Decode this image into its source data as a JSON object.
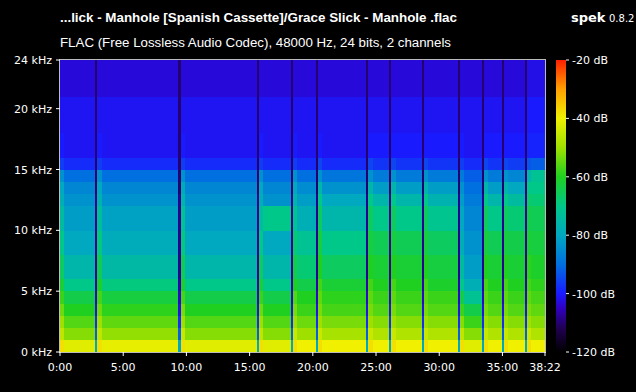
{
  "chart_data": {
    "type": "heatmap",
    "title": "...lick - Manhole [Spanish Cassette]/Grace Slick - Manhole .flac",
    "subtitle": "FLAC (Free Lossless Audio Codec), 48000 Hz, 24 bits, 2 channels",
    "app": "spek",
    "version": "0.8.2",
    "x": [
      0,
      20,
      167,
      177,
      197,
      562,
      572,
      592,
      934,
      944,
      964,
      1096,
      1106,
      1126,
      1215,
      1225,
      1245,
      1454,
      1464,
      1484,
      1563,
      1573,
      1593,
      1716,
      1726,
      1746,
      1887,
      1897,
      1917,
      2002,
      2012,
      2032,
      2097,
      2107,
      2127,
      2207,
      2217,
      2237,
      2302
    ],
    "y": [
      0,
      1,
      2,
      3,
      4,
      5,
      6,
      8,
      10,
      12,
      13,
      14,
      15,
      16,
      18,
      21,
      24
    ],
    "values": [
      [
        -38,
        -46,
        -50,
        -54,
        -58,
        -62,
        -66,
        -70,
        -74,
        -78,
        -80,
        -84,
        -96,
        -100,
        -101,
        -103
      ],
      [
        -42,
        -52,
        -56,
        -60,
        -64,
        -70,
        -76,
        -80,
        -82,
        -84,
        -86,
        -90,
        -98,
        -101,
        -101,
        -103
      ],
      [
        -80,
        -92,
        -98,
        -102,
        -104,
        -106,
        -108,
        -108,
        -108,
        -108,
        -110,
        -110,
        -110,
        -110,
        -110,
        -110
      ],
      [
        -38,
        -46,
        -50,
        -54,
        -57,
        -61,
        -65,
        -69,
        -73,
        -77,
        -80,
        -84,
        -96,
        -100,
        -101,
        -103
      ],
      [
        -41,
        -51,
        -55,
        -59,
        -63,
        -69,
        -75,
        -79,
        -81,
        -84,
        -86,
        -90,
        -98,
        -101,
        -101,
        -103
      ],
      [
        -80,
        -92,
        -98,
        -102,
        -104,
        -106,
        -108,
        -108,
        -108,
        -108,
        -110,
        -110,
        -110,
        -110,
        -110,
        -110
      ],
      [
        -38,
        -45,
        -50,
        -53,
        -57,
        -61,
        -65,
        -69,
        -72,
        -76,
        -79,
        -84,
        -96,
        -100,
        -101,
        -103
      ],
      [
        -42,
        -52,
        -56,
        -60,
        -64,
        -70,
        -76,
        -80,
        -82,
        -84,
        -86,
        -90,
        -98,
        -101,
        -101,
        -103
      ],
      [
        -80,
        -92,
        -98,
        -102,
        -104,
        -106,
        -108,
        -108,
        -108,
        -108,
        -110,
        -110,
        -110,
        -110,
        -110,
        -110
      ],
      [
        -38,
        -46,
        -50,
        -54,
        -58,
        -62,
        -66,
        -70,
        -74,
        -78,
        -80,
        -84,
        -96,
        -100,
        -101,
        -103
      ],
      [
        -42,
        -52,
        -56,
        -60,
        -64,
        -70,
        -76,
        -80,
        -70,
        -84,
        -86,
        -90,
        -98,
        -101,
        -101,
        -103
      ],
      [
        -80,
        -92,
        -98,
        -102,
        -104,
        -106,
        -108,
        -108,
        -108,
        -108,
        -110,
        -110,
        -110,
        -110,
        -110,
        -110
      ],
      [
        -38,
        -45,
        -50,
        -53,
        -56,
        -60,
        -64,
        -68,
        -72,
        -76,
        -80,
        -84,
        -96,
        -100,
        -101,
        -103
      ],
      [
        -40,
        -50,
        -54,
        -58,
        -60,
        -64,
        -68,
        -72,
        -78,
        -82,
        -85,
        -90,
        -98,
        -101,
        -101,
        -103
      ],
      [
        -80,
        -92,
        -98,
        -102,
        -104,
        -106,
        -108,
        -108,
        -108,
        -108,
        -110,
        -110,
        -110,
        -110,
        -110,
        -110
      ],
      [
        -38,
        -45,
        -50,
        -53,
        -55,
        -57,
        -60,
        -63,
        -66,
        -70,
        -76,
        -84,
        -95,
        -100,
        -101,
        -103
      ],
      [
        -40,
        -49,
        -53,
        -57,
        -59,
        -62,
        -66,
        -70,
        -76,
        -80,
        -84,
        -89,
        -98,
        -101,
        -101,
        -103
      ],
      [
        -80,
        -92,
        -98,
        -102,
        -104,
        -106,
        -108,
        -108,
        -108,
        -108,
        -110,
        -110,
        -110,
        -110,
        -110,
        -110
      ],
      [
        -38,
        -45,
        -50,
        -53,
        -55,
        -57,
        -60,
        -63,
        -66,
        -70,
        -76,
        -84,
        -95,
        -100,
        -101,
        -103
      ],
      [
        -40,
        -48,
        -52,
        -56,
        -58,
        -60,
        -62,
        -65,
        -70,
        -76,
        -82,
        -88,
        -97,
        -100,
        -101,
        -103
      ],
      [
        -80,
        -92,
        -98,
        -102,
        -104,
        -106,
        -108,
        -108,
        -108,
        -108,
        -110,
        -110,
        -110,
        -110,
        -110,
        -110
      ],
      [
        -38,
        -45,
        -50,
        -53,
        -55,
        -57,
        -60,
        -63,
        -66,
        -70,
        -76,
        -84,
        -95,
        -100,
        -101,
        -103
      ],
      [
        -40,
        -48,
        -52,
        -56,
        -58,
        -60,
        -62,
        -65,
        -70,
        -76,
        -82,
        -88,
        -97,
        -100,
        -101,
        -103
      ],
      [
        -80,
        -92,
        -98,
        -102,
        -104,
        -106,
        -108,
        -108,
        -108,
        -108,
        -110,
        -110,
        -110,
        -110,
        -110,
        -110
      ],
      [
        -38,
        -45,
        -50,
        -53,
        -55,
        -57,
        -60,
        -63,
        -66,
        -70,
        -76,
        -84,
        -95,
        -100,
        -101,
        -103
      ],
      [
        -40,
        -48,
        -52,
        -56,
        -58,
        -61,
        -63,
        -66,
        -71,
        -77,
        -82,
        -88,
        -97,
        -100,
        -101,
        -103
      ],
      [
        -80,
        -92,
        -98,
        -102,
        -104,
        -106,
        -108,
        -108,
        -108,
        -108,
        -110,
        -110,
        -110,
        -110,
        -110,
        -110
      ],
      [
        -38,
        -46,
        -52,
        -58,
        -64,
        -70,
        -74,
        -78,
        -80,
        -82,
        -84,
        -88,
        -96,
        -100,
        -101,
        -103
      ],
      [
        -42,
        -52,
        -58,
        -64,
        -72,
        -78,
        -82,
        -84,
        -86,
        -88,
        -90,
        -92,
        -98,
        -101,
        -101,
        -103
      ],
      [
        -80,
        -92,
        -98,
        -102,
        -104,
        -106,
        -108,
        -108,
        -108,
        -108,
        -110,
        -110,
        -110,
        -110,
        -110,
        -110
      ],
      [
        -38,
        -45,
        -50,
        -53,
        -55,
        -57,
        -60,
        -63,
        -66,
        -70,
        -76,
        -84,
        -95,
        -100,
        -101,
        -103
      ],
      [
        -40,
        -48,
        -52,
        -56,
        -58,
        -60,
        -62,
        -65,
        -70,
        -76,
        -82,
        -88,
        -97,
        -100,
        -101,
        -103
      ],
      [
        -80,
        -92,
        -98,
        -102,
        -104,
        -106,
        -108,
        -108,
        -108,
        -108,
        -110,
        -110,
        -110,
        -110,
        -110,
        -110
      ],
      [
        -38,
        -45,
        -50,
        -53,
        -55,
        -57,
        -60,
        -63,
        -66,
        -70,
        -76,
        -84,
        -95,
        -100,
        -101,
        -103
      ],
      [
        -40,
        -48,
        -52,
        -56,
        -58,
        -60,
        -62,
        -64,
        -68,
        -74,
        -80,
        -86,
        -96,
        -100,
        -101,
        -103
      ],
      [
        -80,
        -92,
        -98,
        -102,
        -104,
        -106,
        -108,
        -108,
        -108,
        -108,
        -110,
        -110,
        -110,
        -110,
        -110,
        -110
      ],
      [
        -38,
        -45,
        -50,
        -53,
        -55,
        -57,
        -59,
        -62,
        -64,
        -67,
        -70,
        -76,
        -93,
        -99,
        -100,
        -102
      ],
      [
        -40,
        -48,
        -52,
        -55,
        -57,
        -59,
        -61,
        -63,
        -65,
        -68,
        -70,
        -72,
        -92,
        -99,
        -100,
        -102
      ]
    ],
    "xlim": [
      0,
      2302
    ],
    "xticks": [
      {
        "value": 0,
        "label": "0:00"
      },
      {
        "value": 300,
        "label": "5:00"
      },
      {
        "value": 600,
        "label": "10:00"
      },
      {
        "value": 900,
        "label": "15:00"
      },
      {
        "value": 1200,
        "label": "20:00"
      },
      {
        "value": 1500,
        "label": "25:00"
      },
      {
        "value": 1800,
        "label": "30:00"
      },
      {
        "value": 2100,
        "label": "35:00"
      },
      {
        "value": 2302,
        "label": "38:22"
      }
    ],
    "ylim": [
      0,
      24
    ],
    "yticks": [
      {
        "value": 0,
        "label": "0 kHz"
      },
      {
        "value": 5,
        "label": "5 kHz"
      },
      {
        "value": 10,
        "label": "10 kHz"
      },
      {
        "value": 15,
        "label": "15 kHz"
      },
      {
        "value": 20,
        "label": "20 kHz"
      },
      {
        "value": 24,
        "label": "24 kHz"
      }
    ],
    "colorbar": {
      "range": [
        -120,
        -20
      ],
      "ticks": [
        {
          "value": -20,
          "label": "-20 dB"
        },
        {
          "value": -40,
          "label": "-40 dB"
        },
        {
          "value": -60,
          "label": "-60 dB"
        },
        {
          "value": -80,
          "label": "-80 dB"
        },
        {
          "value": -100,
          "label": "-100 dB"
        },
        {
          "value": -120,
          "label": "-120 dB"
        }
      ]
    }
  }
}
